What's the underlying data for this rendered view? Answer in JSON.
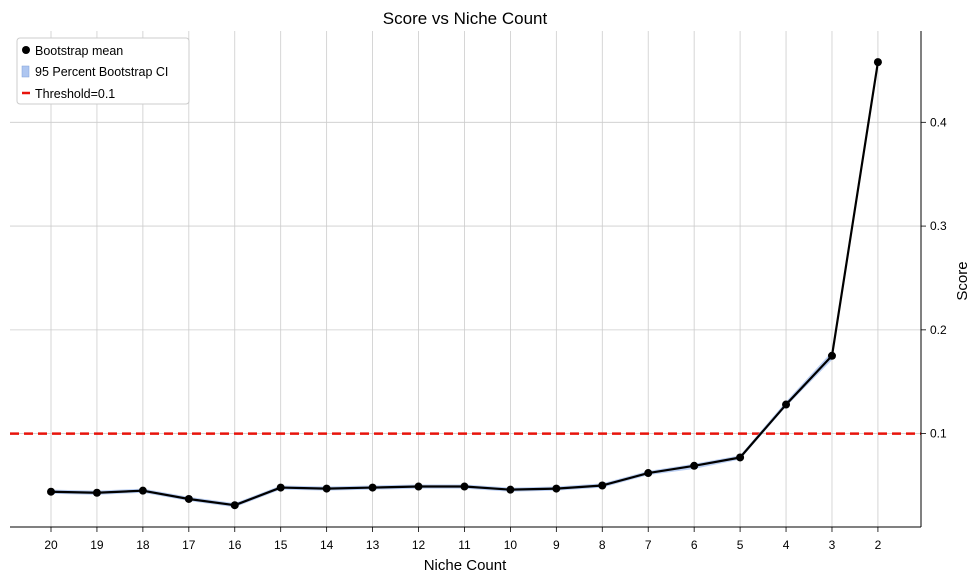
{
  "chart_data": {
    "type": "line",
    "title": "Score vs Niche Count",
    "xlabel": "Niche Count",
    "ylabel": "Score",
    "categories": [
      "20",
      "19",
      "18",
      "17",
      "16",
      "15",
      "14",
      "13",
      "12",
      "11",
      "10",
      "9",
      "8",
      "7",
      "6",
      "5",
      "4",
      "3",
      "2"
    ],
    "series": [
      {
        "name": "Bootstrap mean",
        "values": [
          0.044,
          0.043,
          0.045,
          0.037,
          0.031,
          0.048,
          0.047,
          0.048,
          0.049,
          0.049,
          0.046,
          0.047,
          0.05,
          0.062,
          0.069,
          0.077,
          0.128,
          0.175,
          0.458
        ],
        "color": "#000000"
      }
    ],
    "ci": {
      "name": "95 Percent Bootstrap CI",
      "lower": [
        0.042,
        0.041,
        0.043,
        0.035,
        0.029,
        0.046,
        0.045,
        0.046,
        0.047,
        0.047,
        0.044,
        0.045,
        0.048,
        0.06,
        0.066,
        0.075,
        0.126,
        0.171,
        0.455
      ],
      "upper": [
        0.046,
        0.045,
        0.047,
        0.039,
        0.033,
        0.05,
        0.049,
        0.05,
        0.051,
        0.051,
        0.048,
        0.049,
        0.052,
        0.064,
        0.071,
        0.079,
        0.131,
        0.179,
        0.461
      ],
      "color": "#aec6f0"
    },
    "threshold": {
      "name": "Threshold=0.1",
      "value": 0.1,
      "color": "#e8140c"
    },
    "yticks": [
      "0.1",
      "0.2",
      "0.3",
      "0.4"
    ],
    "ytick_values": [
      0.1,
      0.2,
      0.3,
      0.4
    ],
    "ylim": [
      0.01,
      0.488
    ],
    "y_axis_side": "right",
    "grid": true,
    "legend_position": "top-left"
  }
}
